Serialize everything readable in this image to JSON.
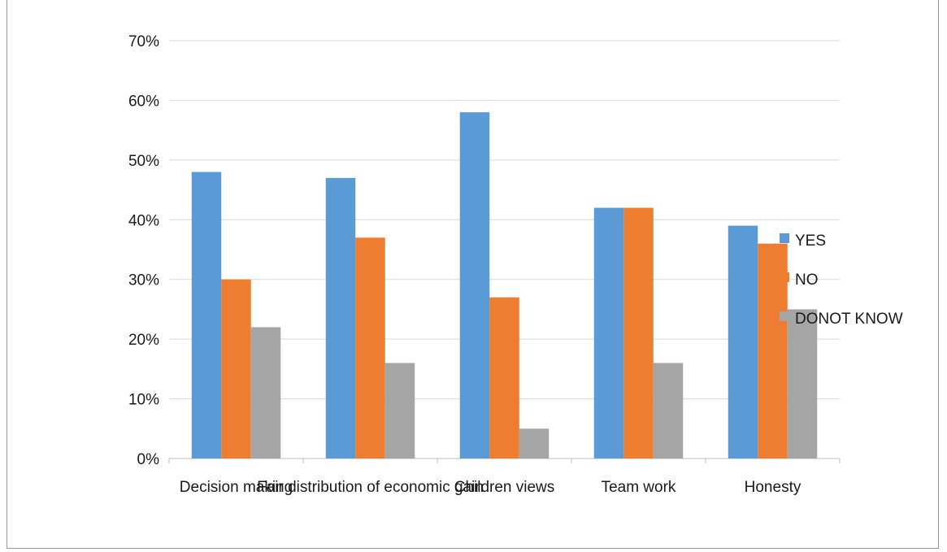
{
  "chart_data": {
    "type": "bar",
    "title": "",
    "xlabel": "",
    "ylabel": "",
    "categories": [
      "Decision making",
      "Fair distribution of economic gain",
      "Children views",
      "Team work",
      "Honesty"
    ],
    "series": [
      {
        "name": "YES",
        "values": [
          48,
          47,
          58,
          42,
          39
        ],
        "color": "#5b9bd5"
      },
      {
        "name": "NO",
        "values": [
          30,
          37,
          27,
          42,
          36
        ],
        "color": "#ed7d31"
      },
      {
        "name": "DONOT KNOW",
        "values": [
          22,
          16,
          5,
          16,
          25
        ],
        "color": "#a5a5a5"
      }
    ],
    "ylim": [
      0,
      70
    ],
    "yticks": [
      "0%",
      "10%",
      "20%",
      "30%",
      "40%",
      "50%",
      "60%",
      "70%"
    ],
    "grid": true,
    "legend_position": "right"
  }
}
